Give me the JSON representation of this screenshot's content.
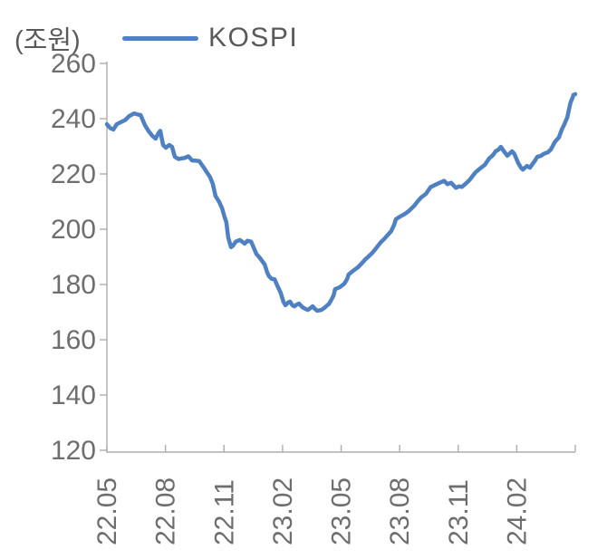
{
  "header": {
    "unit_label": "(조원)",
    "legend_label": "KOSPI"
  },
  "chart_data": {
    "type": "line",
    "title": "KOSPI",
    "unit_label": "(조원)",
    "unit": "trillion KRW (조원)",
    "ylim": [
      120,
      260
    ],
    "y_ticks": [
      260,
      240,
      220,
      200,
      180,
      160,
      140,
      120
    ],
    "x_tick_labels": [
      "22.05",
      "22.08",
      "22.11",
      "23.02",
      "23.05",
      "23.08",
      "23.11",
      "24.02"
    ],
    "x_range": [
      "2022-05",
      "2024-05"
    ],
    "x_encoding": "fraction of x-axis, 0 = 22.05 tick, 1 = right axis end (~24.05); ticks every 3 months at i/8",
    "grid": false,
    "legend_position": "top-center",
    "colors": {
      "line": "#4E80C2",
      "axis": "#ADADAD",
      "tick_label": "#6E6E6E",
      "header_text": "#595959",
      "background": "#FFFFFF"
    },
    "series": [
      {
        "name": "KOSPI",
        "color": "#4E80C2",
        "points": [
          [
            0.0,
            238.0
          ],
          [
            0.008,
            236.5
          ],
          [
            0.014,
            236.1
          ],
          [
            0.021,
            238.0
          ],
          [
            0.029,
            238.7
          ],
          [
            0.039,
            239.5
          ],
          [
            0.048,
            241.0
          ],
          [
            0.058,
            241.9
          ],
          [
            0.066,
            241.5
          ],
          [
            0.072,
            241.3
          ],
          [
            0.081,
            237.7
          ],
          [
            0.089,
            235.5
          ],
          [
            0.097,
            233.8
          ],
          [
            0.104,
            232.8
          ],
          [
            0.11,
            234.8
          ],
          [
            0.114,
            235.6
          ],
          [
            0.12,
            230.5
          ],
          [
            0.126,
            229.5
          ],
          [
            0.133,
            230.5
          ],
          [
            0.139,
            229.8
          ],
          [
            0.145,
            226.2
          ],
          [
            0.153,
            225.4
          ],
          [
            0.159,
            225.6
          ],
          [
            0.166,
            225.8
          ],
          [
            0.174,
            226.4
          ],
          [
            0.182,
            224.9
          ],
          [
            0.19,
            224.8
          ],
          [
            0.197,
            224.7
          ],
          [
            0.207,
            222.3
          ],
          [
            0.213,
            220.7
          ],
          [
            0.22,
            219.0
          ],
          [
            0.226,
            216.5
          ],
          [
            0.232,
            212.0
          ],
          [
            0.24,
            209.8
          ],
          [
            0.246,
            207.5
          ],
          [
            0.251,
            204.5
          ],
          [
            0.255,
            202.6
          ],
          [
            0.259,
            197.0
          ],
          [
            0.265,
            193.5
          ],
          [
            0.269,
            194.0
          ],
          [
            0.275,
            195.5
          ],
          [
            0.284,
            196.1
          ],
          [
            0.294,
            194.8
          ],
          [
            0.3,
            195.8
          ],
          [
            0.308,
            195.5
          ],
          [
            0.313,
            193.5
          ],
          [
            0.319,
            191.1
          ],
          [
            0.327,
            189.5
          ],
          [
            0.337,
            187.2
          ],
          [
            0.342,
            184.5
          ],
          [
            0.346,
            183.0
          ],
          [
            0.352,
            182.0
          ],
          [
            0.358,
            181.9
          ],
          [
            0.364,
            179.5
          ],
          [
            0.371,
            177.0
          ],
          [
            0.377,
            173.7
          ],
          [
            0.381,
            172.5
          ],
          [
            0.387,
            173.5
          ],
          [
            0.391,
            173.8
          ],
          [
            0.396,
            172.5
          ],
          [
            0.4,
            172.1
          ],
          [
            0.406,
            172.8
          ],
          [
            0.41,
            173.1
          ],
          [
            0.416,
            172.0
          ],
          [
            0.42,
            171.5
          ],
          [
            0.426,
            171.0
          ],
          [
            0.429,
            170.8
          ],
          [
            0.435,
            171.5
          ],
          [
            0.439,
            172.1
          ],
          [
            0.445,
            171.0
          ],
          [
            0.449,
            170.5
          ],
          [
            0.458,
            170.8
          ],
          [
            0.464,
            171.5
          ],
          [
            0.468,
            172.1
          ],
          [
            0.474,
            173.0
          ],
          [
            0.478,
            174.1
          ],
          [
            0.484,
            176.0
          ],
          [
            0.487,
            178.3
          ],
          [
            0.497,
            179.0
          ],
          [
            0.503,
            179.8
          ],
          [
            0.507,
            180.3
          ],
          [
            0.513,
            182.0
          ],
          [
            0.516,
            183.6
          ],
          [
            0.526,
            185.0
          ],
          [
            0.536,
            186.2
          ],
          [
            0.546,
            188.0
          ],
          [
            0.551,
            189.0
          ],
          [
            0.559,
            190.2
          ],
          [
            0.567,
            191.5
          ],
          [
            0.574,
            193.0
          ],
          [
            0.584,
            195.1
          ],
          [
            0.592,
            196.5
          ],
          [
            0.6,
            198.0
          ],
          [
            0.607,
            199.3
          ],
          [
            0.613,
            201.5
          ],
          [
            0.617,
            203.6
          ],
          [
            0.625,
            204.5
          ],
          [
            0.636,
            205.5
          ],
          [
            0.644,
            206.5
          ],
          [
            0.656,
            208.5
          ],
          [
            0.663,
            210.0
          ],
          [
            0.671,
            211.5
          ],
          [
            0.681,
            212.8
          ],
          [
            0.691,
            215.2
          ],
          [
            0.7,
            216.0
          ],
          [
            0.71,
            216.8
          ],
          [
            0.72,
            217.5
          ],
          [
            0.727,
            216.3
          ],
          [
            0.735,
            216.8
          ],
          [
            0.745,
            215.0
          ],
          [
            0.752,
            215.5
          ],
          [
            0.758,
            215.3
          ],
          [
            0.766,
            216.5
          ],
          [
            0.774,
            217.8
          ],
          [
            0.781,
            219.3
          ],
          [
            0.787,
            220.6
          ],
          [
            0.797,
            222.0
          ],
          [
            0.807,
            223.3
          ],
          [
            0.816,
            225.6
          ],
          [
            0.824,
            226.8
          ],
          [
            0.83,
            228.2
          ],
          [
            0.836,
            228.8
          ],
          [
            0.841,
            229.8
          ],
          [
            0.849,
            227.9
          ],
          [
            0.855,
            226.6
          ],
          [
            0.865,
            228.2
          ],
          [
            0.87,
            227.2
          ],
          [
            0.878,
            224.0
          ],
          [
            0.884,
            222.3
          ],
          [
            0.888,
            221.6
          ],
          [
            0.897,
            222.9
          ],
          [
            0.903,
            222.3
          ],
          [
            0.913,
            224.6
          ],
          [
            0.919,
            226.2
          ],
          [
            0.927,
            226.6
          ],
          [
            0.932,
            227.2
          ],
          [
            0.942,
            227.9
          ],
          [
            0.948,
            228.9
          ],
          [
            0.956,
            231.5
          ],
          [
            0.961,
            232.5
          ],
          [
            0.965,
            233.2
          ],
          [
            0.971,
            236.0
          ],
          [
            0.977,
            238.1
          ],
          [
            0.983,
            240.5
          ],
          [
            0.986,
            243.0
          ],
          [
            0.99,
            245.9
          ],
          [
            0.994,
            247.5
          ],
          [
            0.996,
            248.6
          ],
          [
            1.0,
            248.9
          ]
        ]
      }
    ]
  }
}
